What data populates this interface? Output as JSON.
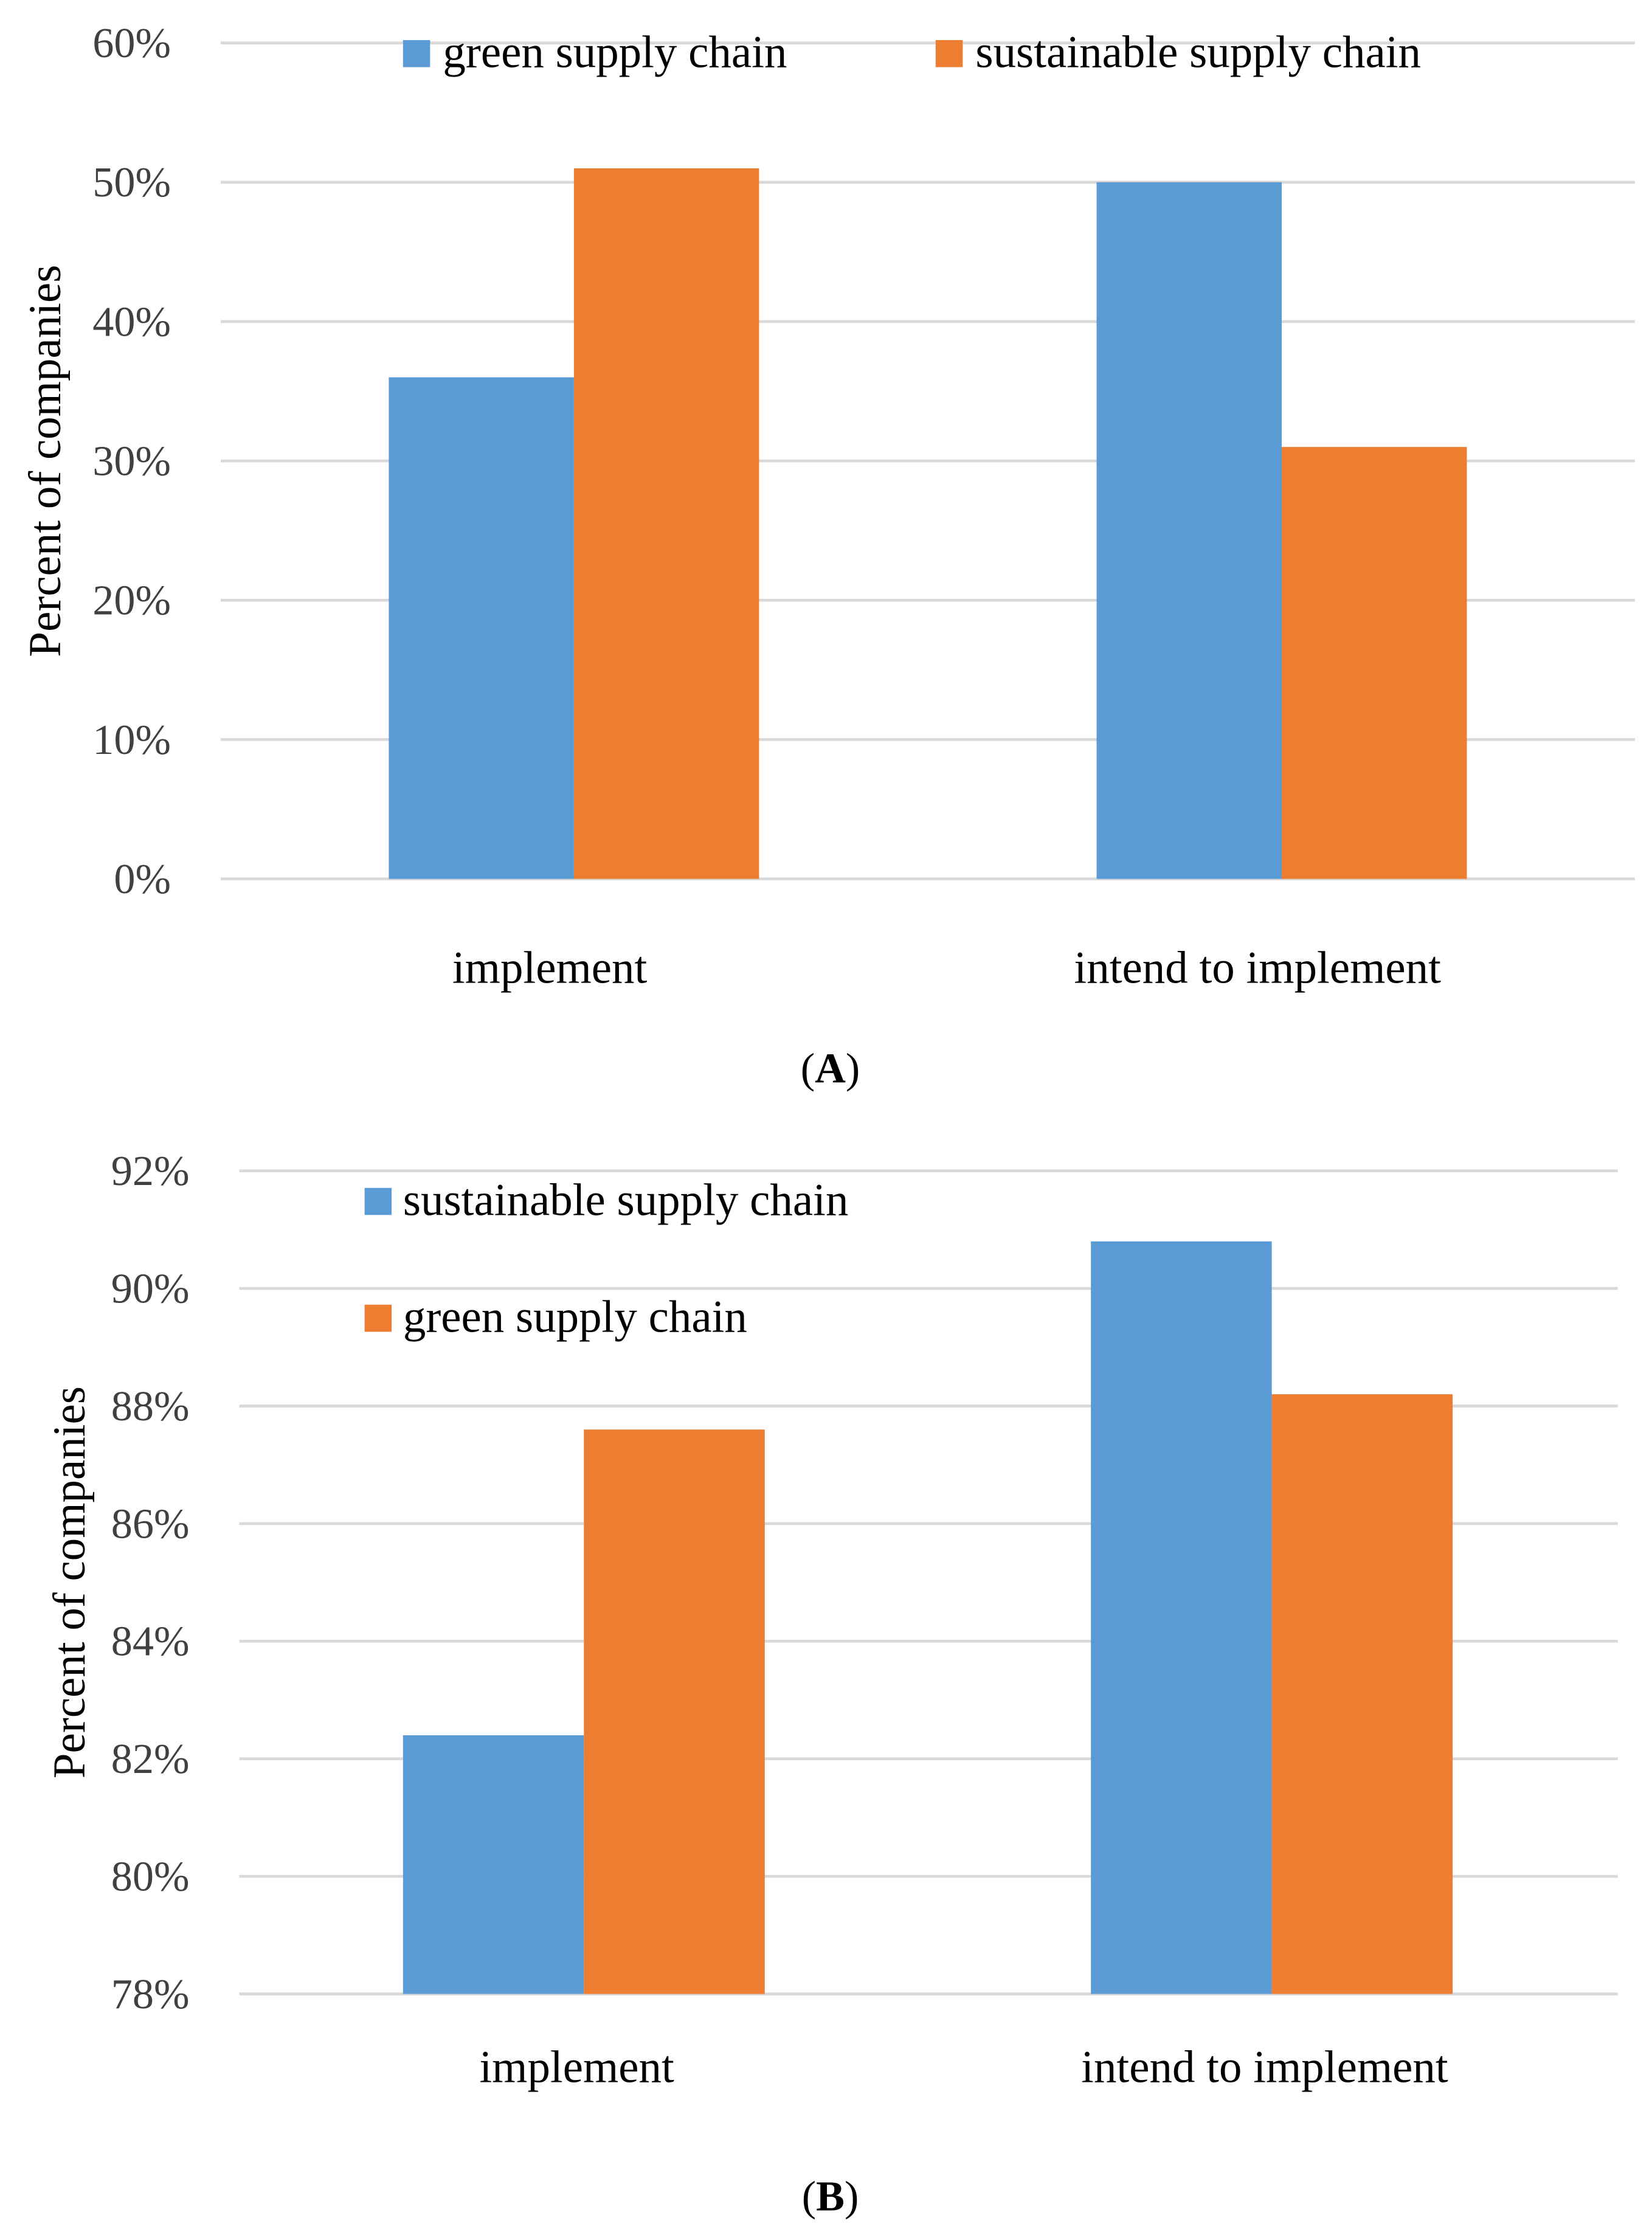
{
  "colors": {
    "blue": "#5B9BD5",
    "orange": "#ED7D31",
    "grid": "#D9D9D9"
  },
  "chart_data": [
    {
      "type": "bar",
      "caption": "A",
      "categories": [
        "implement",
        "intend to implement"
      ],
      "ylabel": "Percent of companies",
      "ylim": [
        0,
        60
      ],
      "yticks": [
        "0%",
        "10%",
        "20%",
        "30%",
        "40%",
        "50%",
        "60%"
      ],
      "grid": true,
      "legend_position": "top",
      "series": [
        {
          "name": "green supply chain",
          "color": "#5B9BD5",
          "values": [
            36,
            50
          ]
        },
        {
          "name": "sustainable supply chain",
          "color": "#ED7D31",
          "values": [
            51,
            31
          ]
        }
      ]
    },
    {
      "type": "bar",
      "caption": "B",
      "categories": [
        "implement",
        "intend to implement"
      ],
      "ylabel": "Percent of companies",
      "ylim": [
        78,
        92
      ],
      "yticks": [
        "78%",
        "80%",
        "82%",
        "84%",
        "86%",
        "88%",
        "90%",
        "92%"
      ],
      "grid": true,
      "legend_position": "top-left",
      "series": [
        {
          "name": "sustainable supply chain",
          "color": "#5B9BD5",
          "values": [
            82.4,
            90.8
          ]
        },
        {
          "name": "green supply chain",
          "color": "#ED7D31",
          "values": [
            87.6,
            88.2
          ]
        }
      ]
    }
  ]
}
